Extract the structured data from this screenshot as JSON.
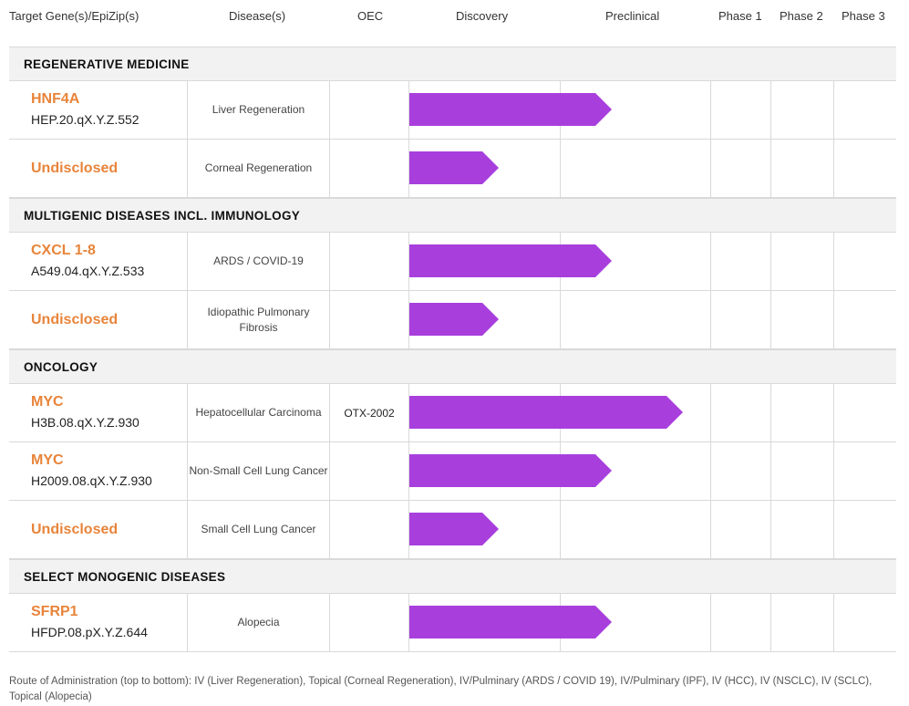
{
  "header": {
    "col_target": "Target Gene(s)/EpiZip(s)",
    "col_disease": "Disease(s)",
    "col_oec": "OEC",
    "col_discovery": "Discovery",
    "col_preclinical": "Preclinical",
    "col_phase1": "Phase 1",
    "col_phase2": "Phase 2",
    "col_phase3": "Phase 3"
  },
  "sections": [
    {
      "title": "REGENERATIVE MEDICINE",
      "rows": [
        {
          "gene": "HNF4A",
          "code": "HEP.20.qX.Y.Z.552",
          "disease": "Liver Regeneration",
          "oec": "",
          "stage": "Preclinical",
          "progress": 0.68
        },
        {
          "gene": "Undisclosed",
          "code": "",
          "disease": "Corneal Regeneration",
          "oec": "",
          "stage": "Discovery",
          "progress": 0.3
        }
      ]
    },
    {
      "title": "MULTIGENIC DISEASES INCL. IMMUNOLOGY",
      "rows": [
        {
          "gene": "CXCL 1-8",
          "code": "A549.04.qX.Y.Z.533",
          "disease": "ARDS / COVID-19",
          "oec": "",
          "stage": "Preclinical",
          "progress": 0.68
        },
        {
          "gene": "Undisclosed",
          "code": "",
          "disease": "Idiopathic Pulmonary Fibrosis",
          "oec": "",
          "stage": "Discovery",
          "progress": 0.3
        }
      ]
    },
    {
      "title": "ONCOLOGY",
      "rows": [
        {
          "gene": "MYC",
          "code": "H3B.08.qX.Y.Z.930",
          "disease": "Hepatocellular Carcinoma",
          "oec": "OTX-2002",
          "stage": "Preclinical",
          "progress": 0.92
        },
        {
          "gene": "MYC",
          "code": "H2009.08.qX.Y.Z.930",
          "disease": "Non-Small Cell Lung Cancer",
          "oec": "",
          "stage": "Preclinical",
          "progress": 0.68
        },
        {
          "gene": "Undisclosed",
          "code": "",
          "disease": "Small Cell Lung Cancer",
          "oec": "",
          "stage": "Discovery",
          "progress": 0.3
        }
      ]
    },
    {
      "title": "SELECT MONOGENIC DISEASES",
      "rows": [
        {
          "gene": "SFRP1",
          "code": "HFDP.08.pX.Y.Z.644",
          "disease": "Alopecia",
          "oec": "",
          "stage": "Preclinical",
          "progress": 0.68
        }
      ]
    }
  ],
  "footer": {
    "note": "Route of Administration (top to bottom): IV (Liver Regeneration), Topical (Corneal Regeneration), IV/Pulminary (ARDS / COVID 19), IV/Pulminary (IPF), IV (HCC), IV (NSCLC), IV (SCLC), Topical (Alopecia)"
  },
  "colors": {
    "bar": "#a83fdd",
    "gene_accent": "#e8843a",
    "section_bg": "#f2f2f2",
    "grid": "#d9d9d9"
  }
}
